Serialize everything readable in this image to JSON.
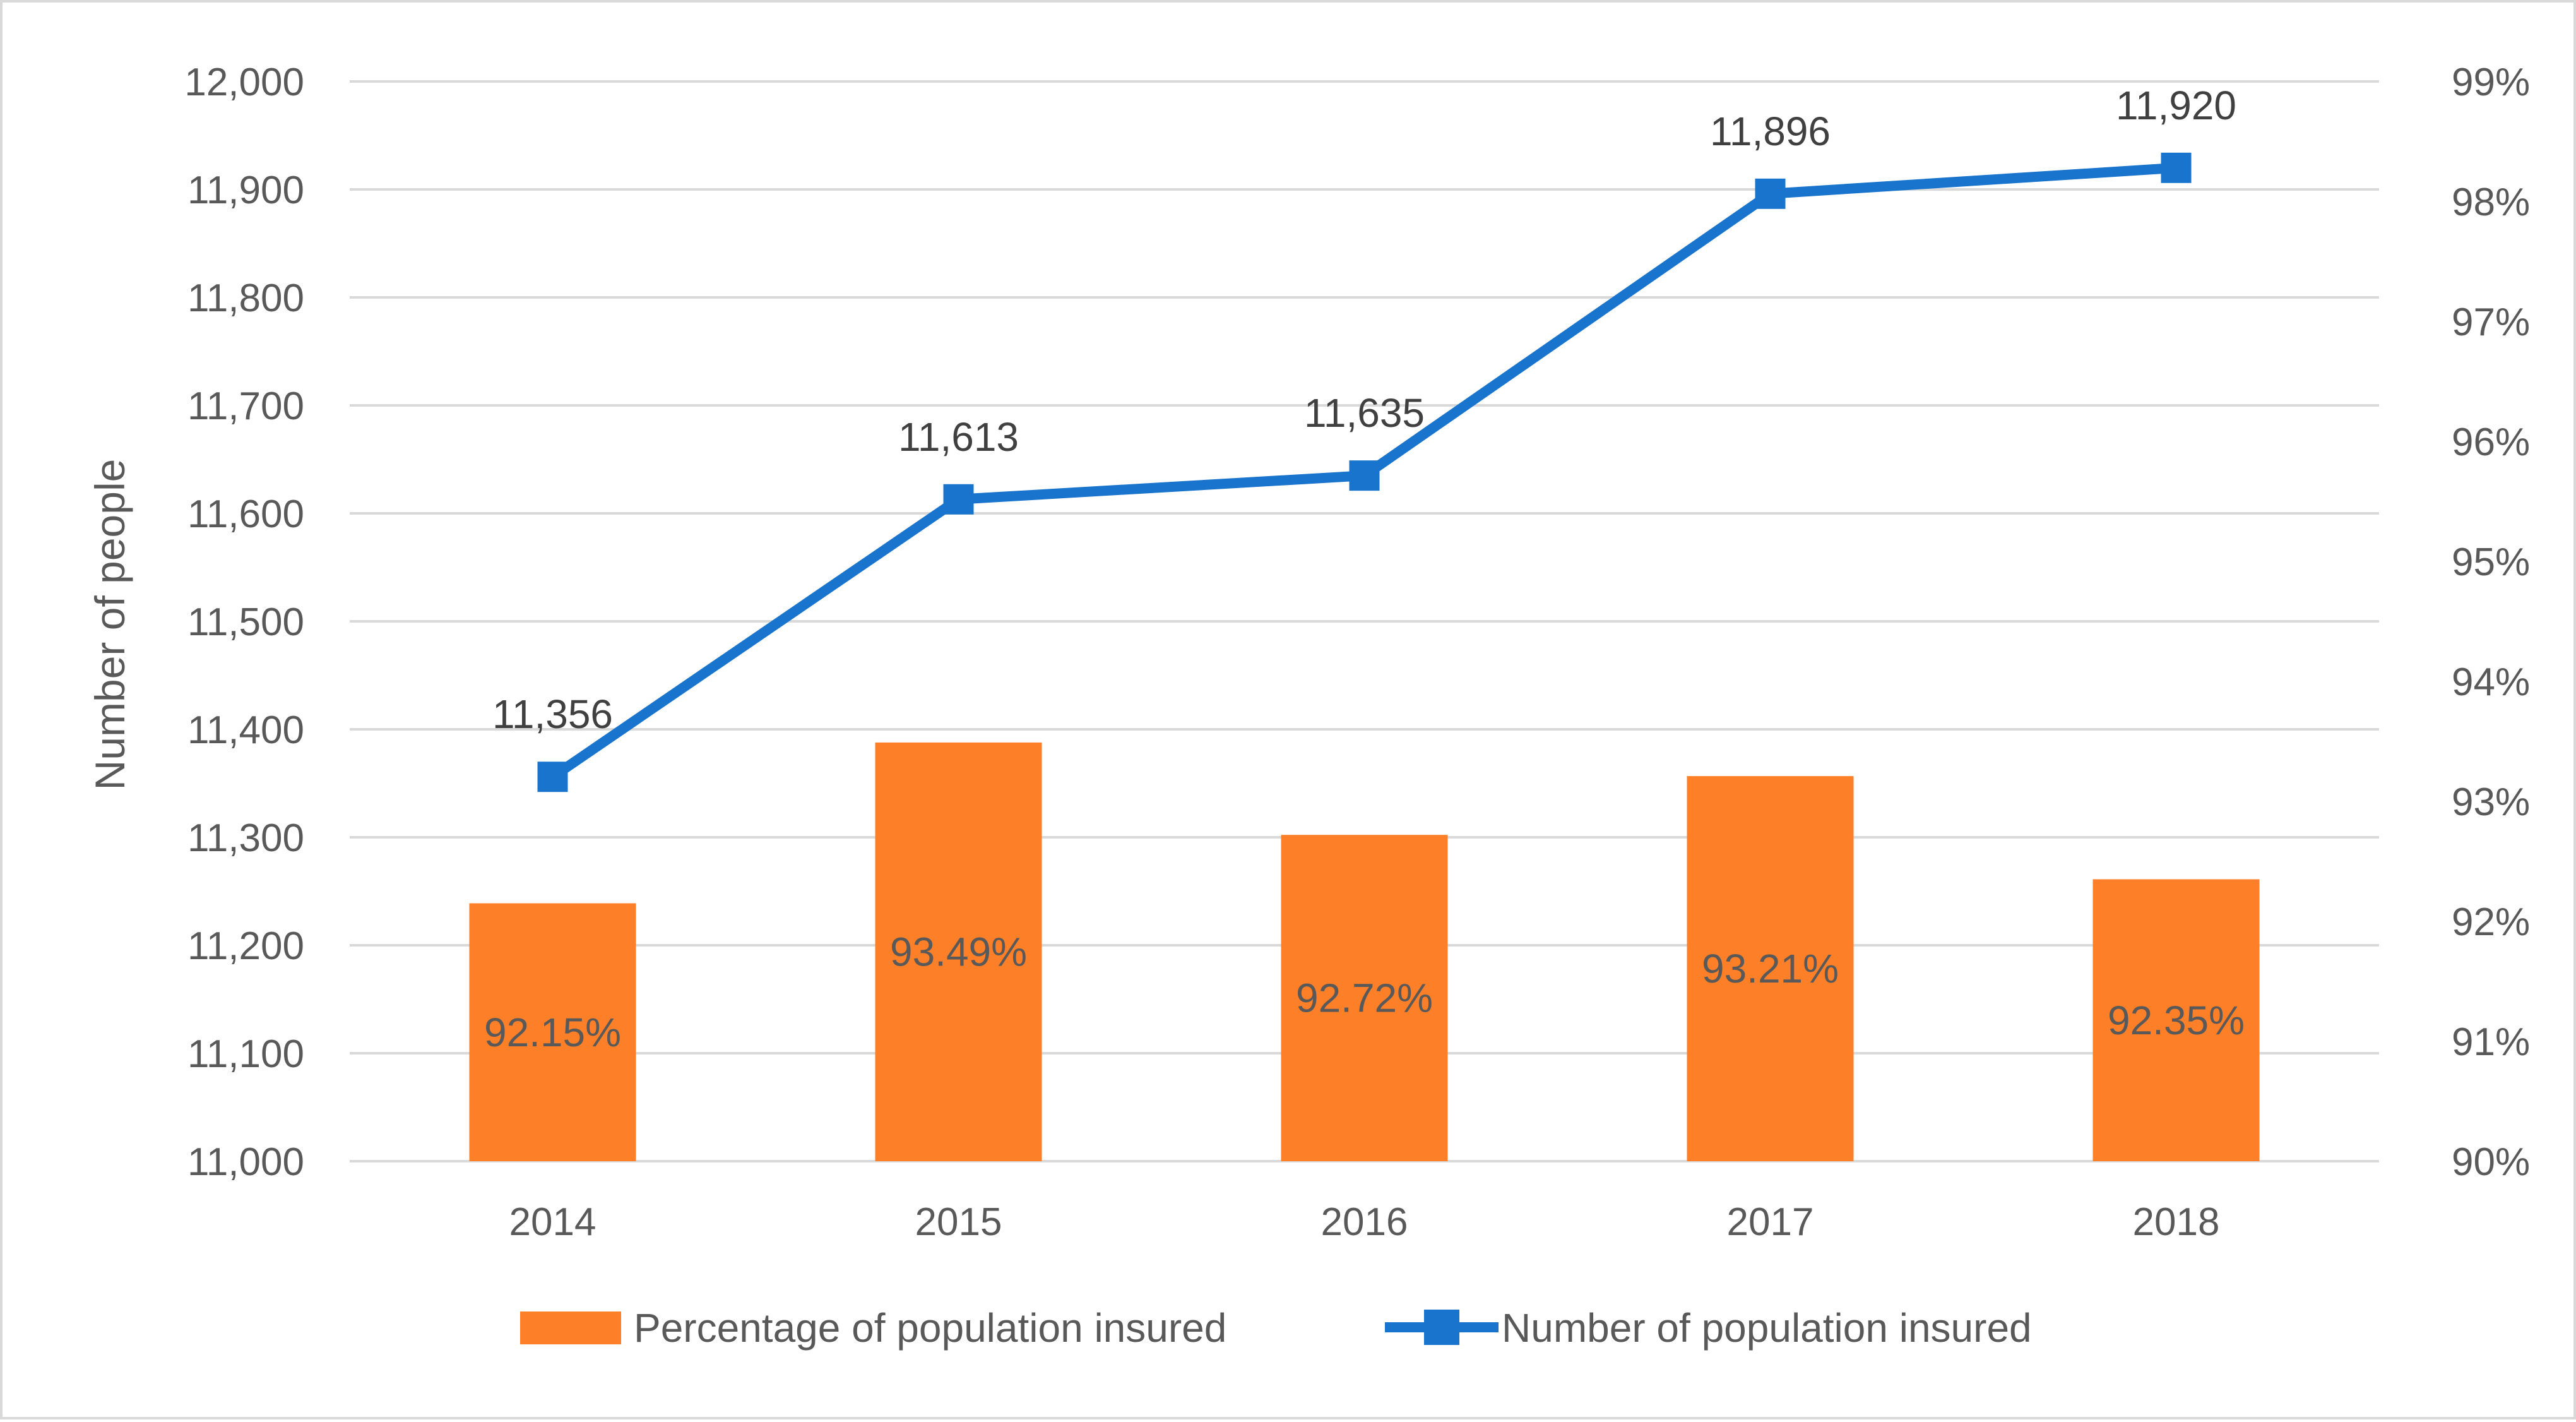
{
  "chart_data": {
    "type": "bar+line",
    "categories": [
      "2014",
      "2015",
      "2016",
      "2017",
      "2018"
    ],
    "series": [
      {
        "name": "Percentage of population insured",
        "kind": "bar",
        "axis": "right",
        "values": [
          92.15,
          93.49,
          92.72,
          93.21,
          92.35
        ],
        "labels": [
          "92.15%",
          "93.49%",
          "92.72%",
          "93.21%",
          "92.35%"
        ],
        "color": "#fd7f28"
      },
      {
        "name": "Number of population insured",
        "kind": "line",
        "axis": "left",
        "marker": "square",
        "values": [
          11356,
          11613,
          11635,
          11896,
          11920
        ],
        "labels": [
          "11,356",
          "11,613",
          "11,635",
          "11,896",
          "11,920"
        ],
        "color": "#1874cd"
      }
    ],
    "ylabel": "Number of people",
    "ylim": [
      11000,
      12000
    ],
    "yticks": [
      "11,000",
      "11,100",
      "11,200",
      "11,300",
      "11,400",
      "11,500",
      "11,600",
      "11,700",
      "11,800",
      "11,900",
      "12,000"
    ],
    "y2lim": [
      90,
      99
    ],
    "y2ticks": [
      "90%",
      "91%",
      "92%",
      "93%",
      "94%",
      "95%",
      "96%",
      "97%",
      "98%",
      "99%"
    ],
    "grid": true,
    "legend_position": "bottom",
    "colors": {
      "grid": "#d9d9d9",
      "text": "#595959",
      "bar": "#fd7f28",
      "line": "#1874cd"
    }
  }
}
